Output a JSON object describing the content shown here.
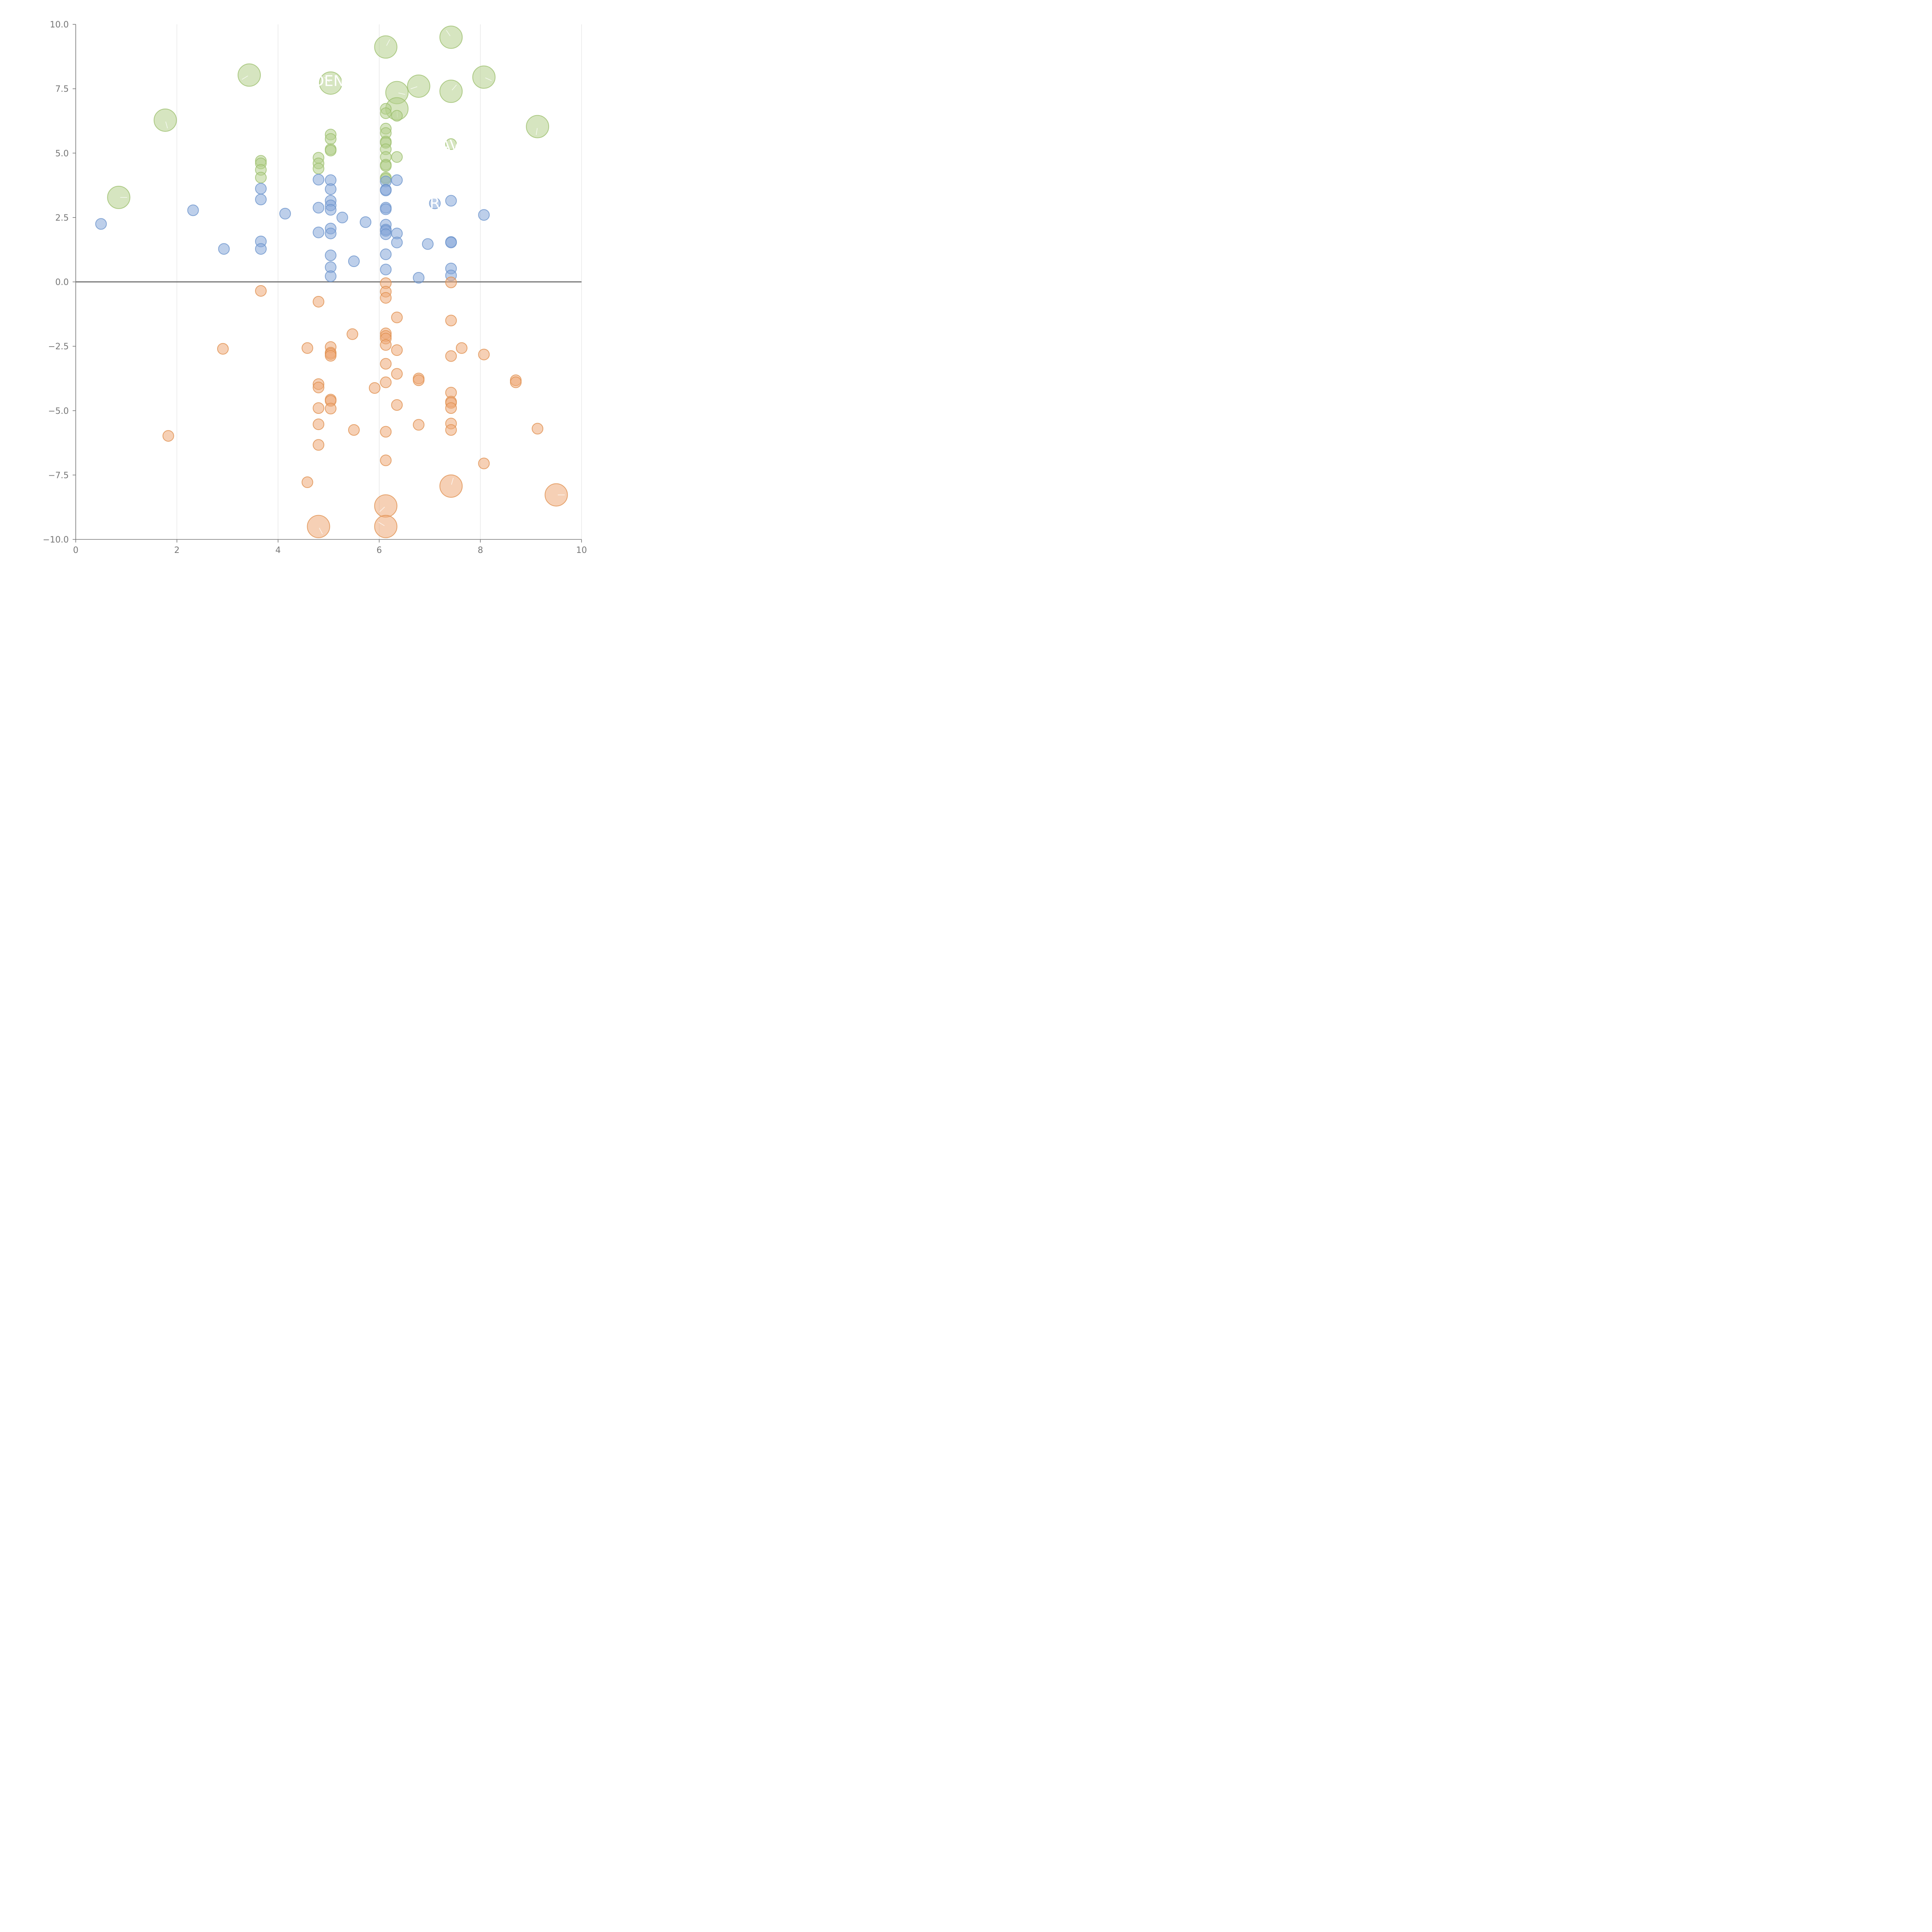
{
  "chart_data": {
    "type": "scatter",
    "title": "",
    "xlabel": "",
    "ylabel": "",
    "xlim": [
      0,
      10
    ],
    "ylim": [
      -10,
      10
    ],
    "grid": "vertical",
    "baseline": 0,
    "x_ticks": [
      0,
      2,
      4,
      6,
      8,
      10
    ],
    "y_ticks": [
      10,
      7.5,
      5,
      2.5,
      0,
      -2.5,
      -5,
      -7.5,
      -10
    ],
    "x_tick_labels": [
      "0",
      "2",
      "4",
      "6",
      "8",
      "10"
    ],
    "y_tick_labels": [
      "10.0",
      "7.5",
      "5.0",
      "2.5",
      "0.0",
      "−2.5",
      "−5.0",
      "−7.5",
      "−10.0"
    ],
    "colors": {
      "green_fill": "#b5d08c",
      "green_stroke": "#9cbf6d",
      "blue_fill": "#86a8d8",
      "blue_stroke": "#6b93cc",
      "orange_fill": "#eeaa78",
      "orange_stroke": "#e0904f",
      "axis": "#777777",
      "grid": "#dddddd"
    },
    "annotations": [
      {
        "text": "DEN",
        "x": 5.0,
        "y": 7.8,
        "series": "green"
      },
      {
        "text": "AV",
        "x": 7.4,
        "y": 5.3,
        "series": "green"
      },
      {
        "text": "R",
        "x": 7.1,
        "y": 3.05,
        "series": "blue"
      }
    ],
    "series": [
      {
        "name": "green",
        "points": [
          [
            0.85,
            3.28,
            2
          ],
          [
            1.77,
            6.28,
            2
          ],
          [
            3.43,
            8.03,
            2
          ],
          [
            5.04,
            7.72,
            2
          ],
          [
            6.13,
            9.12,
            2
          ],
          [
            6.35,
            7.35,
            2
          ],
          [
            6.35,
            6.72,
            2
          ],
          [
            6.78,
            7.6,
            2
          ],
          [
            7.42,
            9.5,
            2
          ],
          [
            7.42,
            7.4,
            2
          ],
          [
            8.07,
            7.95,
            2
          ],
          [
            9.13,
            6.03,
            2
          ],
          [
            3.66,
            4.7,
            1
          ],
          [
            3.66,
            4.6,
            1
          ],
          [
            3.66,
            4.35,
            1
          ],
          [
            3.66,
            4.05,
            1
          ],
          [
            4.8,
            4.82,
            1
          ],
          [
            4.8,
            4.6,
            1
          ],
          [
            4.8,
            4.4,
            1
          ],
          [
            5.04,
            5.72,
            1
          ],
          [
            5.04,
            5.55,
            1
          ],
          [
            5.04,
            5.15,
            1
          ],
          [
            5.04,
            5.1,
            1
          ],
          [
            6.13,
            6.72,
            1
          ],
          [
            6.13,
            6.55,
            1
          ],
          [
            6.13,
            5.95,
            1
          ],
          [
            6.13,
            5.78,
            1
          ],
          [
            6.13,
            5.45,
            1
          ],
          [
            6.13,
            5.4,
            1
          ],
          [
            6.13,
            5.15,
            1
          ],
          [
            6.13,
            4.85,
            1
          ],
          [
            6.13,
            4.55,
            1
          ],
          [
            6.13,
            4.5,
            1
          ],
          [
            6.13,
            4.05,
            1
          ],
          [
            6.13,
            4.0,
            1
          ],
          [
            6.35,
            6.45,
            1
          ],
          [
            6.35,
            4.85,
            1
          ],
          [
            7.42,
            5.35,
            1
          ]
        ]
      },
      {
        "name": "blue",
        "points": [
          [
            0.5,
            2.25,
            1
          ],
          [
            2.32,
            2.78,
            1
          ],
          [
            2.93,
            1.28,
            1
          ],
          [
            3.66,
            3.62,
            1
          ],
          [
            3.66,
            3.2,
            1
          ],
          [
            3.66,
            1.57,
            1
          ],
          [
            3.66,
            1.28,
            1
          ],
          [
            4.14,
            2.65,
            1
          ],
          [
            4.8,
            3.97,
            1
          ],
          [
            4.8,
            2.88,
            1
          ],
          [
            4.8,
            1.92,
            1
          ],
          [
            5.04,
            3.95,
            1
          ],
          [
            5.04,
            3.6,
            1
          ],
          [
            5.04,
            3.15,
            1
          ],
          [
            5.04,
            2.97,
            1
          ],
          [
            5.04,
            2.8,
            1
          ],
          [
            5.04,
            2.07,
            1
          ],
          [
            5.04,
            1.88,
            1
          ],
          [
            5.04,
            1.03,
            1
          ],
          [
            5.04,
            0.57,
            1
          ],
          [
            5.04,
            0.22,
            1
          ],
          [
            5.27,
            2.5,
            1
          ],
          [
            5.5,
            0.8,
            1
          ],
          [
            5.73,
            2.32,
            1
          ],
          [
            6.13,
            3.9,
            1
          ],
          [
            6.13,
            3.58,
            1
          ],
          [
            6.13,
            3.55,
            1
          ],
          [
            6.13,
            2.88,
            1
          ],
          [
            6.13,
            2.82,
            1
          ],
          [
            6.13,
            2.22,
            1
          ],
          [
            6.13,
            2.03,
            1
          ],
          [
            6.13,
            1.98,
            1
          ],
          [
            6.13,
            1.85,
            1
          ],
          [
            6.13,
            1.07,
            1
          ],
          [
            6.13,
            0.48,
            1
          ],
          [
            6.35,
            3.95,
            1
          ],
          [
            6.35,
            1.88,
            1
          ],
          [
            6.35,
            1.53,
            1
          ],
          [
            6.78,
            0.16,
            1
          ],
          [
            6.96,
            1.47,
            1
          ],
          [
            7.1,
            3.05,
            1
          ],
          [
            7.42,
            3.15,
            1
          ],
          [
            7.42,
            1.55,
            1
          ],
          [
            7.42,
            1.53,
            1
          ],
          [
            7.42,
            0.52,
            1
          ],
          [
            7.42,
            0.25,
            1
          ],
          [
            8.07,
            2.6,
            1
          ]
        ]
      },
      {
        "name": "orange",
        "points": [
          [
            1.83,
            -5.98,
            1
          ],
          [
            2.91,
            -2.6,
            1
          ],
          [
            3.66,
            -0.35,
            1
          ],
          [
            4.58,
            -2.57,
            1
          ],
          [
            4.58,
            -7.78,
            1
          ],
          [
            4.8,
            -0.77,
            1
          ],
          [
            4.8,
            -3.97,
            1
          ],
          [
            4.8,
            -4.1,
            1
          ],
          [
            4.8,
            -4.9,
            1
          ],
          [
            4.8,
            -5.53,
            1
          ],
          [
            4.8,
            -6.33,
            1
          ],
          [
            5.04,
            -2.53,
            1
          ],
          [
            5.04,
            -2.75,
            1
          ],
          [
            5.04,
            -2.8,
            1
          ],
          [
            5.04,
            -2.87,
            1
          ],
          [
            5.04,
            -4.57,
            1
          ],
          [
            5.04,
            -4.62,
            1
          ],
          [
            5.04,
            -4.92,
            1
          ],
          [
            5.47,
            -2.03,
            1
          ],
          [
            5.5,
            -5.75,
            1
          ],
          [
            5.91,
            -4.12,
            1
          ],
          [
            6.13,
            -0.05,
            1
          ],
          [
            6.13,
            -0.38,
            1
          ],
          [
            6.13,
            -0.62,
            1
          ],
          [
            6.13,
            -2.0,
            1
          ],
          [
            6.13,
            -2.1,
            1
          ],
          [
            6.13,
            -2.2,
            1
          ],
          [
            6.13,
            -2.45,
            1
          ],
          [
            6.13,
            -3.18,
            1
          ],
          [
            6.13,
            -3.9,
            1
          ],
          [
            6.13,
            -5.82,
            1
          ],
          [
            6.13,
            -6.93,
            1
          ],
          [
            6.35,
            -1.38,
            1
          ],
          [
            6.35,
            -2.65,
            1
          ],
          [
            6.35,
            -3.57,
            1
          ],
          [
            6.35,
            -4.78,
            1
          ],
          [
            6.78,
            -3.75,
            1
          ],
          [
            6.78,
            -3.82,
            1
          ],
          [
            6.78,
            -5.55,
            1
          ],
          [
            7.42,
            -0.02,
            1
          ],
          [
            7.42,
            -1.5,
            1
          ],
          [
            7.42,
            -2.88,
            1
          ],
          [
            7.42,
            -4.3,
            1
          ],
          [
            7.42,
            -4.65,
            1
          ],
          [
            7.42,
            -4.7,
            1
          ],
          [
            7.42,
            -4.9,
            1
          ],
          [
            7.42,
            -5.5,
            1
          ],
          [
            7.42,
            -5.75,
            1
          ],
          [
            7.63,
            -2.57,
            1
          ],
          [
            8.07,
            -2.82,
            1
          ],
          [
            8.07,
            -7.05,
            1
          ],
          [
            8.7,
            -3.82,
            1
          ],
          [
            8.7,
            -3.9,
            1
          ],
          [
            9.13,
            -5.7,
            1
          ],
          [
            4.8,
            -9.5,
            2
          ],
          [
            6.13,
            -8.7,
            2
          ],
          [
            6.13,
            -9.5,
            2
          ],
          [
            7.42,
            -7.93,
            2
          ],
          [
            9.5,
            -8.27,
            2
          ]
        ]
      }
    ]
  }
}
